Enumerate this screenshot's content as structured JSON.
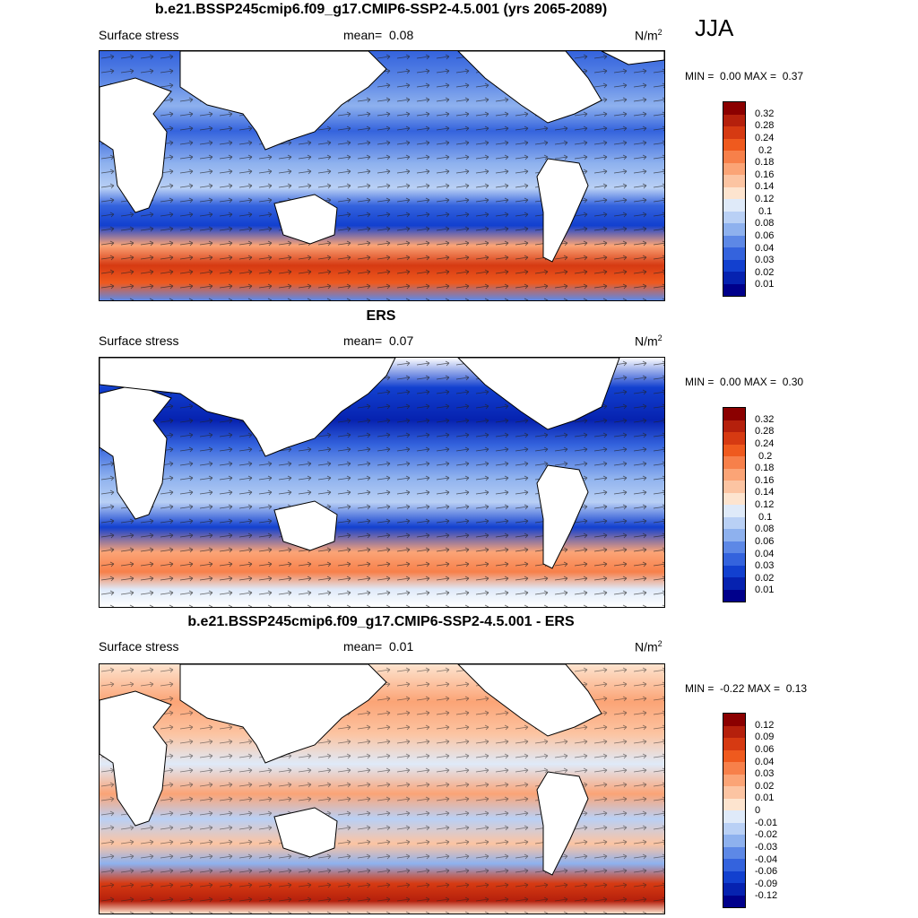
{
  "season": "JJA",
  "panels": [
    {
      "title": "b.e21.BSSP245cmip6.f09_g17.CMIP6-SSP2-4.5.001 (yrs 2065-2089)",
      "variable": "Surface stress",
      "mean_label": "mean=",
      "mean_value": "0.08",
      "units_base": "N/m",
      "units_exp": "2",
      "min_label": "MIN =",
      "min_value": "0.00",
      "max_label": "MAX =",
      "max_value": "0.37",
      "colorbar_labels": [
        "0.32",
        "0.28",
        "0.24",
        "0.2",
        "0.18",
        "0.16",
        "0.14",
        "0.12",
        "0.1",
        "0.08",
        "0.06",
        "0.04",
        "0.03",
        "0.02",
        "0.01"
      ],
      "colorbar_colors": [
        "#8b0000",
        "#b5200c",
        "#d63a12",
        "#ef5a1e",
        "#f7804a",
        "#fba476",
        "#fcc4a2",
        "#fde4cf",
        "#dfeaf9",
        "#b9d0f5",
        "#8eb1ee",
        "#5d88e6",
        "#3463dd",
        "#1240cf",
        "#0622b0",
        "#00008b"
      ]
    },
    {
      "title": "ERS",
      "variable": "Surface stress",
      "mean_label": "mean=",
      "mean_value": "0.07",
      "units_base": "N/m",
      "units_exp": "2",
      "min_label": "MIN =",
      "min_value": "0.00",
      "max_label": "MAX =",
      "max_value": "0.30",
      "colorbar_labels": [
        "0.32",
        "0.28",
        "0.24",
        "0.2",
        "0.18",
        "0.16",
        "0.14",
        "0.12",
        "0.1",
        "0.08",
        "0.06",
        "0.04",
        "0.03",
        "0.02",
        "0.01"
      ],
      "colorbar_colors": [
        "#8b0000",
        "#b5200c",
        "#d63a12",
        "#ef5a1e",
        "#f7804a",
        "#fba476",
        "#fcc4a2",
        "#fde4cf",
        "#dfeaf9",
        "#b9d0f5",
        "#8eb1ee",
        "#5d88e6",
        "#3463dd",
        "#1240cf",
        "#0622b0",
        "#00008b"
      ]
    },
    {
      "title": "b.e21.BSSP245cmip6.f09_g17.CMIP6-SSP2-4.5.001 - ERS",
      "variable": "Surface stress",
      "mean_label": "mean=",
      "mean_value": "0.01",
      "units_base": "N/m",
      "units_exp": "2",
      "min_label": "MIN =",
      "min_value": "-0.22",
      "max_label": "MAX =",
      "max_value": "0.13",
      "colorbar_labels": [
        "0.12",
        "0.09",
        "0.06",
        "0.04",
        "0.03",
        "0.02",
        "0.01",
        "0",
        "-0.01",
        "-0.02",
        "-0.03",
        "-0.04",
        "-0.06",
        "-0.09",
        "-0.12"
      ],
      "colorbar_colors": [
        "#8b0000",
        "#b5200c",
        "#d63a12",
        "#ef5a1e",
        "#f7804a",
        "#fba476",
        "#fcc4a2",
        "#fde4cf",
        "#dfeaf9",
        "#b9d0f5",
        "#8eb1ee",
        "#5d88e6",
        "#3463dd",
        "#1240cf",
        "#0622b0",
        "#00008b"
      ]
    }
  ]
}
